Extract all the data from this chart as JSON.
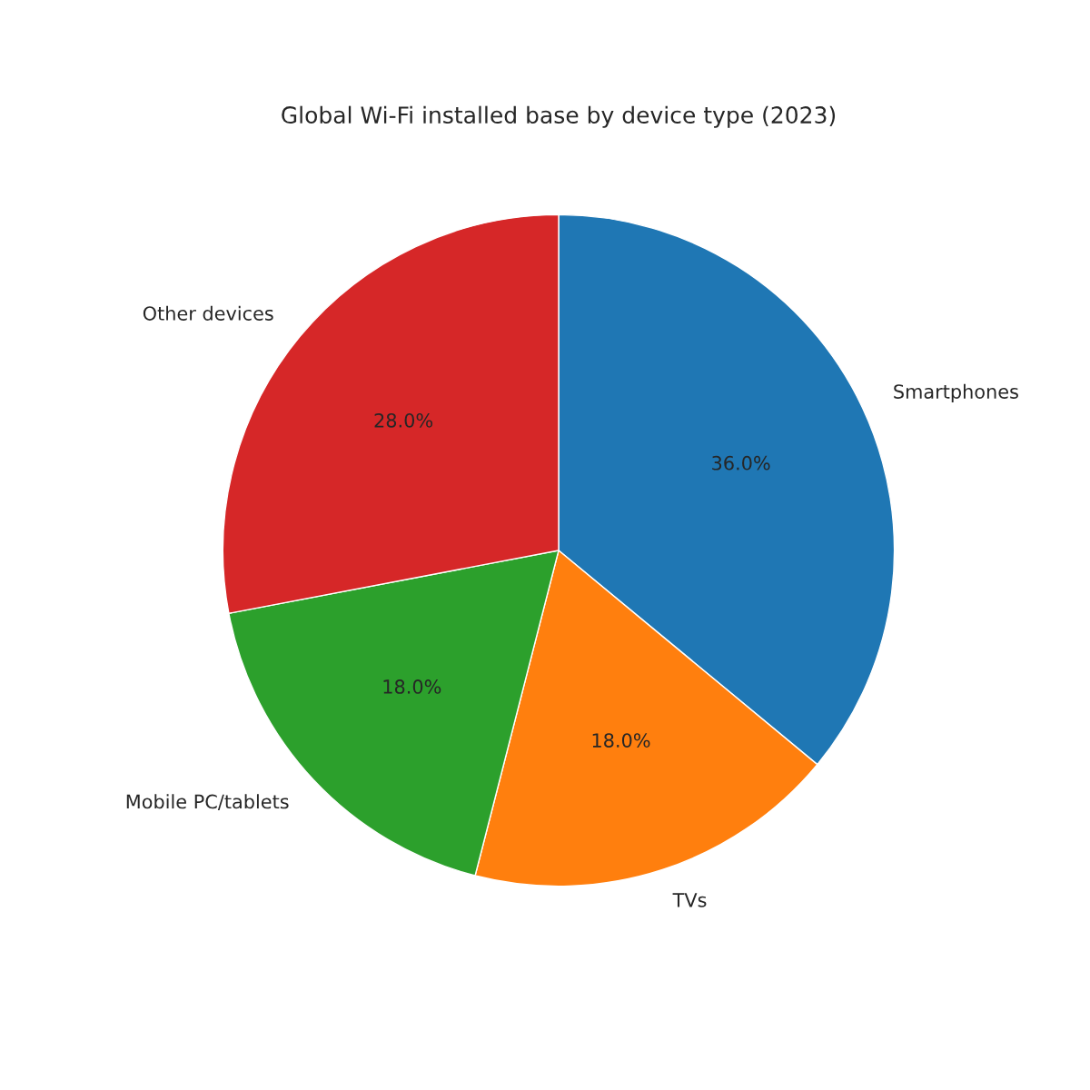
{
  "chart_data": {
    "type": "pie",
    "title": "Global Wi-Fi installed base by device type (2023)",
    "categories": [
      "Smartphones",
      "TVs",
      "Mobile PC/tablets",
      "Other devices"
    ],
    "values": [
      36,
      18,
      18,
      28
    ],
    "colors": [
      "#1f77b4",
      "#ff7f0e",
      "#2ca02c",
      "#d62728"
    ],
    "value_labels": [
      "36.0%",
      "18.0%",
      "18.0%",
      "28.0%"
    ]
  }
}
